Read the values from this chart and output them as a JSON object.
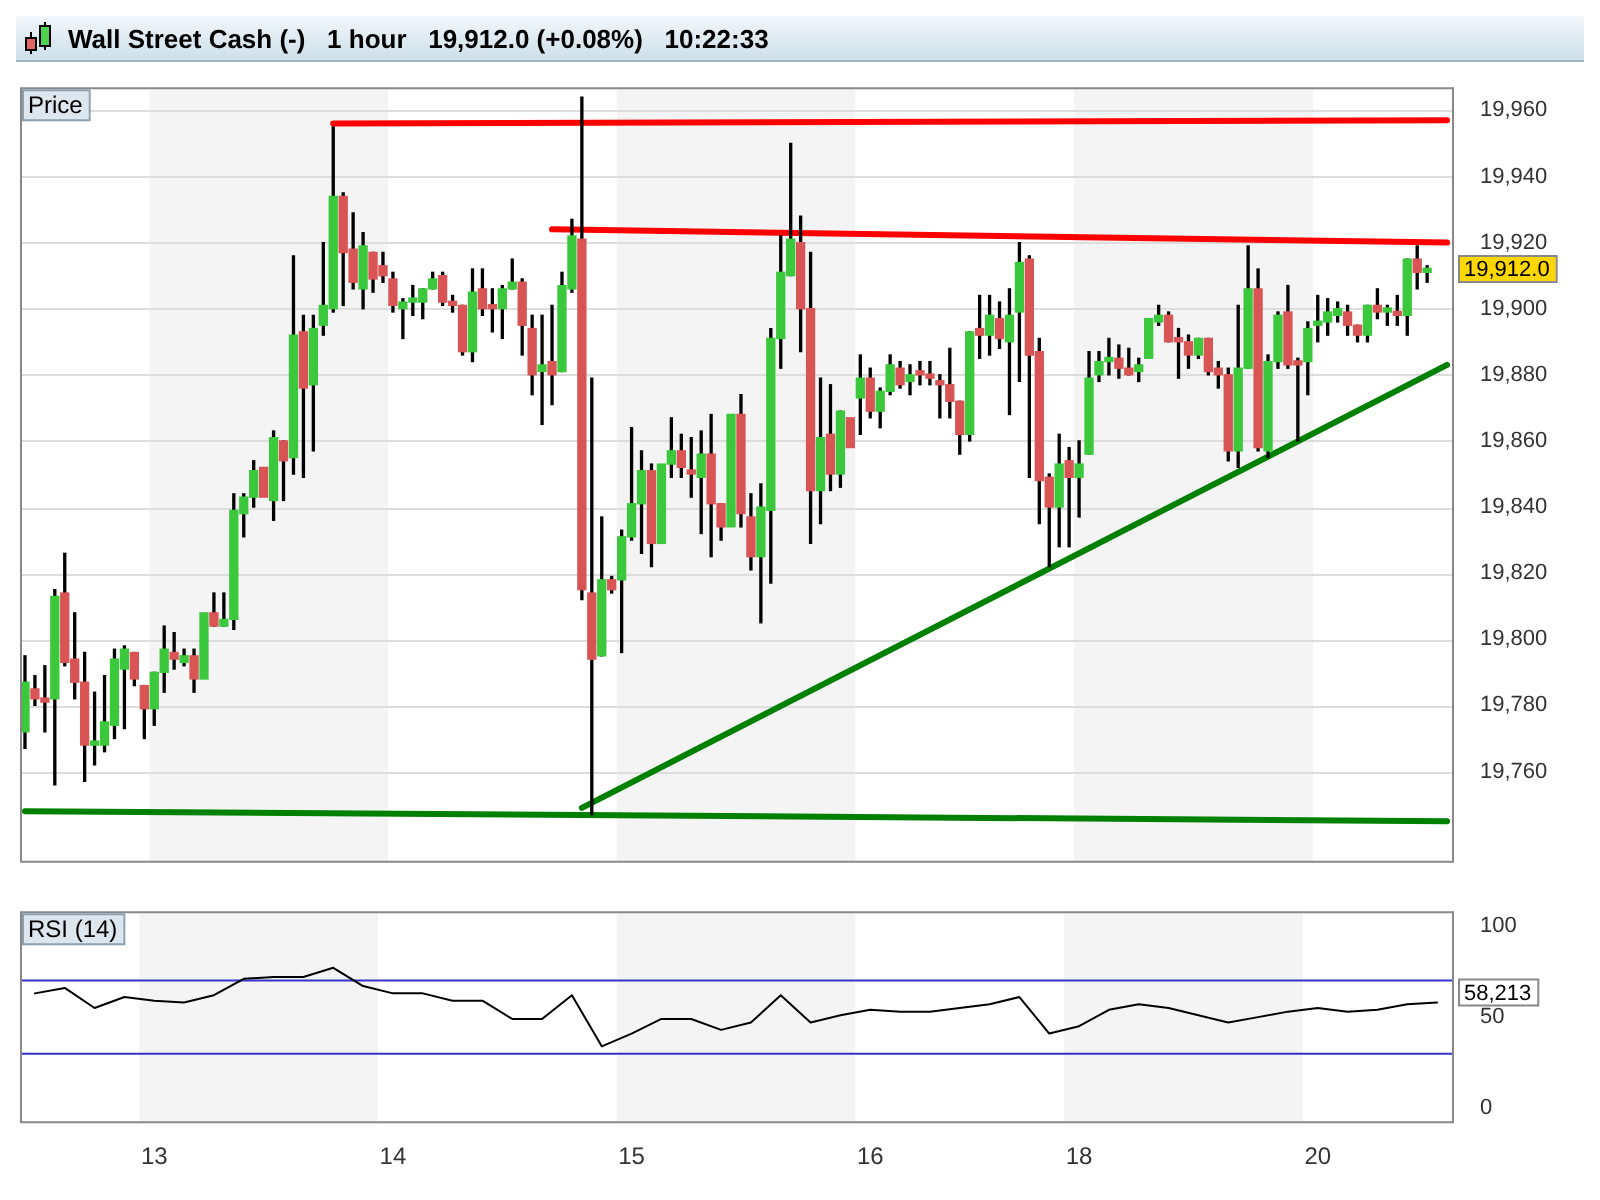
{
  "chart_data": [
    {
      "type": "candlestick",
      "title": "Wall Street Cash (-)   1 hour   19,912.0 (+0.08%)   10:22:33",
      "ylabel": "Price",
      "categories": [
        null,
        null,
        null,
        null,
        null,
        null,
        null,
        null,
        null,
        null,
        null,
        null,
        null,
        "13",
        null,
        null,
        null,
        null,
        null,
        null,
        null,
        null,
        null,
        null,
        null,
        null,
        null,
        null,
        null,
        null,
        null,
        null,
        null,
        null,
        null,
        null,
        null,
        "14",
        null,
        null,
        null,
        null,
        null,
        null,
        null,
        null,
        null,
        null,
        null,
        null,
        null,
        null,
        null,
        null,
        null,
        null,
        null,
        null,
        null,
        null,
        "15",
        null,
        null,
        null,
        null,
        null,
        null,
        null,
        null,
        null,
        null,
        null,
        null,
        null,
        null,
        null,
        null,
        null,
        null,
        null,
        null,
        null,
        null,
        null,
        "16",
        null,
        null,
        null,
        null,
        null,
        null,
        null,
        null,
        null,
        null,
        null,
        null,
        null,
        null,
        null,
        null,
        null,
        null,
        null,
        null,
        null,
        "18",
        null,
        null,
        null,
        null,
        null,
        null,
        null,
        null,
        null,
        null,
        null,
        null,
        null,
        null,
        null,
        null,
        null,
        null,
        null,
        null,
        null,
        null,
        null,
        "20",
        null,
        null,
        null,
        null,
        null,
        null,
        null,
        null,
        null,
        null,
        null,
        null,
        null
      ],
      "ohlc": [
        [
          19772,
          19795,
          19767,
          19787
        ],
        [
          19785,
          19789,
          19780,
          19782
        ],
        [
          19782,
          19792,
          19772,
          19781
        ],
        [
          19782,
          19815,
          19756,
          19813
        ],
        [
          19814,
          19826,
          19792,
          19793
        ],
        [
          19794,
          19808,
          19782,
          19787
        ],
        [
          19787,
          19796,
          19757,
          19768
        ],
        [
          19768,
          19784,
          19762,
          19769
        ],
        [
          19768,
          19789,
          19766,
          19775
        ],
        [
          19774,
          19797,
          19770,
          19794
        ],
        [
          19791,
          19798,
          19773,
          19797
        ],
        [
          19796,
          19796,
          19786,
          19788
        ],
        [
          19786,
          19786,
          19770,
          19779
        ],
        [
          19779,
          19790,
          19774,
          19790
        ],
        [
          19790,
          19804,
          19784,
          19797
        ],
        [
          19796,
          19802,
          19791,
          19794
        ],
        [
          19793,
          19797,
          19792,
          19795
        ],
        [
          19795,
          19797,
          19784,
          19788
        ],
        [
          19788,
          19808,
          19788,
          19808
        ],
        [
          19808,
          19814,
          19804,
          19804
        ],
        [
          19804,
          19814,
          19804,
          19806
        ],
        [
          19806,
          19844,
          19803,
          19839
        ],
        [
          19838,
          19844,
          19831,
          19843
        ],
        [
          19843,
          19854,
          19840,
          19851
        ],
        [
          19852,
          19852,
          19843,
          19843
        ],
        [
          19842,
          19863,
          19836,
          19861
        ],
        [
          19860,
          19860,
          19842,
          19854
        ],
        [
          19855,
          19916,
          19850,
          19892
        ],
        [
          19893,
          19898,
          19849,
          19876
        ],
        [
          19877,
          19898,
          19857,
          19894
        ],
        [
          19895,
          19920,
          19892,
          19901
        ],
        [
          19900,
          19955,
          19899,
          19934
        ],
        [
          19934,
          19935,
          19901,
          19917
        ],
        [
          19918,
          19929,
          19906,
          19908
        ],
        [
          19906,
          19923,
          19900,
          19919
        ],
        [
          19917,
          19917,
          19905,
          19909
        ],
        [
          19913,
          19917,
          19908,
          19910
        ],
        [
          19909,
          19911,
          19899,
          19901
        ],
        [
          19900,
          19903,
          19891,
          19902
        ],
        [
          19902,
          19907,
          19898,
          19903
        ],
        [
          19902,
          19906,
          19897,
          19906
        ],
        [
          19906,
          19911,
          19906,
          19909
        ],
        [
          19910,
          19911,
          19901,
          19902
        ],
        [
          19902,
          19904,
          19899,
          19901
        ],
        [
          19901,
          19901,
          19886,
          19887
        ],
        [
          19887,
          19912,
          19884,
          19905
        ],
        [
          19906,
          19912,
          19898,
          19900
        ],
        [
          19901,
          19906,
          19893,
          19900
        ],
        [
          19900,
          19907,
          19891,
          19906
        ],
        [
          19906,
          19915,
          19906,
          19908
        ],
        [
          19908,
          19909,
          19886,
          19895
        ],
        [
          19894,
          19898,
          19874,
          19880
        ],
        [
          19881,
          19898,
          19865,
          19883
        ],
        [
          19884,
          19901,
          19871,
          19880
        ],
        [
          19881,
          19911,
          19881,
          19907
        ],
        [
          19906,
          19927,
          19905,
          19922
        ],
        [
          19921,
          19964,
          19812,
          19815
        ],
        [
          19814,
          19879,
          19747,
          19794
        ],
        [
          19795,
          19837,
          19795,
          19818
        ],
        [
          19818,
          19819,
          19814,
          19815
        ],
        [
          19818,
          19833,
          19796,
          19831
        ],
        [
          19831,
          19864,
          19830,
          19841
        ],
        [
          19841,
          19857,
          19826,
          19851
        ],
        [
          19851,
          19853,
          19822,
          19829
        ],
        [
          19829,
          19853,
          19829,
          19853
        ],
        [
          19853,
          19867,
          19849,
          19857
        ],
        [
          19857,
          19862,
          19849,
          19852
        ],
        [
          19851,
          19861,
          19843,
          19850
        ],
        [
          19849,
          19863,
          19832,
          19856
        ],
        [
          19856,
          19868,
          19825,
          19841
        ],
        [
          19841,
          19841,
          19830,
          19834
        ],
        [
          19834,
          19868,
          19834,
          19868
        ],
        [
          19868,
          19874,
          19834,
          19838
        ],
        [
          19837,
          19844,
          19821,
          19825
        ],
        [
          19825,
          19847,
          19805,
          19840
        ],
        [
          19839,
          19894,
          19817,
          19891
        ],
        [
          19891,
          19922,
          19882,
          19911
        ],
        [
          19910,
          19950,
          19910,
          19921
        ],
        [
          19920,
          19928,
          19887,
          19900
        ],
        [
          19900,
          19917,
          19829,
          19845
        ],
        [
          19845,
          19879,
          19835,
          19861
        ],
        [
          19862,
          19877,
          19845,
          19850
        ],
        [
          19850,
          19869,
          19846,
          19869
        ],
        [
          19867,
          19867,
          19858,
          19858
        ],
        [
          19873,
          19886,
          19862,
          19879
        ],
        [
          19879,
          19882,
          19867,
          19869
        ],
        [
          19869,
          19876,
          19864,
          19875
        ],
        [
          19875,
          19886,
          19874,
          19883
        ],
        [
          19882,
          19884,
          19876,
          19877
        ],
        [
          19878,
          19883,
          19874,
          19880
        ],
        [
          19881,
          19884,
          19877,
          19880
        ],
        [
          19880,
          19884,
          19877,
          19879
        ],
        [
          19878,
          19880,
          19867,
          19877
        ],
        [
          19877,
          19888,
          19867,
          19872
        ],
        [
          19872,
          19872,
          19856,
          19862
        ],
        [
          19862,
          19893,
          19860,
          19893
        ],
        [
          19894,
          19904,
          19885,
          19892
        ],
        [
          19892,
          19904,
          19886,
          19898
        ],
        [
          19897,
          19902,
          19888,
          19891
        ],
        [
          19890,
          19906,
          19868,
          19898
        ],
        [
          19899,
          19920,
          19878,
          19914
        ],
        [
          19915,
          19916,
          19849,
          19886
        ],
        [
          19887,
          19891,
          19835,
          19848
        ],
        [
          19849,
          19850,
          19822,
          19840
        ],
        [
          19840,
          19862,
          19828,
          19853
        ],
        [
          19854,
          19858,
          19828,
          19849
        ],
        [
          19849,
          19860,
          19837,
          19853
        ],
        [
          19856,
          19887,
          19856,
          19879
        ],
        [
          19880,
          19887,
          19878,
          19884
        ],
        [
          19884,
          19891,
          19880,
          19885
        ],
        [
          19885,
          19889,
          19879,
          19882
        ],
        [
          19882,
          19888,
          19880,
          19880
        ],
        [
          19881,
          19885,
          19878,
          19883
        ],
        [
          19885,
          19897,
          19885,
          19897
        ],
        [
          19896,
          19901,
          19895,
          19898
        ],
        [
          19898,
          19899,
          19890,
          19890
        ],
        [
          19891,
          19894,
          19879,
          19890
        ],
        [
          19890,
          19892,
          19882,
          19886
        ],
        [
          19886,
          19891,
          19885,
          19891
        ],
        [
          19891,
          19891,
          19880,
          19881
        ],
        [
          19882,
          19884,
          19876,
          19880
        ],
        [
          19880,
          19882,
          19854,
          19857
        ],
        [
          19857,
          19901,
          19852,
          19882
        ],
        [
          19882,
          19919,
          19882,
          19906
        ],
        [
          19906,
          19912,
          19857,
          19858
        ],
        [
          19857,
          19886,
          19855,
          19884
        ],
        [
          19884,
          19899,
          19882,
          19898
        ],
        [
          19899,
          19907,
          19882,
          19883
        ],
        [
          19884,
          19885,
          19860,
          19883
        ],
        [
          19884,
          19896,
          19874,
          19894
        ],
        [
          19895,
          19904,
          19890,
          19896
        ],
        [
          19896,
          19903,
          19892,
          19899
        ],
        [
          19898,
          19902,
          19896,
          19900
        ],
        [
          19899,
          19901,
          19892,
          19895
        ],
        [
          19895,
          19895,
          19890,
          19892
        ],
        [
          19892,
          19901,
          19890,
          19901
        ],
        [
          19901,
          19906,
          19897,
          19899
        ],
        [
          19899,
          19901,
          19895,
          19900
        ],
        [
          19899,
          19904,
          19895,
          19898
        ],
        [
          19898,
          19915,
          19892,
          19915
        ],
        [
          19915,
          19919,
          19906,
          19911
        ],
        [
          19911,
          19913,
          19908,
          19912
        ],
        null,
        null
      ],
      "series": [
        {
          "type": "line",
          "color": "#ff0000",
          "values": [
            null,
            null,
            null,
            null,
            null,
            null,
            null,
            null,
            null,
            null,
            null,
            null,
            null,
            null,
            null,
            null,
            null,
            null,
            null,
            null,
            null,
            null,
            null,
            null,
            null,
            null,
            null,
            null,
            null,
            null,
            null,
            19956,
            null,
            null,
            null,
            null,
            null,
            null,
            null,
            null,
            null,
            null,
            null,
            null,
            null,
            null,
            null,
            null,
            null,
            null,
            null,
            null,
            null,
            null,
            null,
            null,
            null,
            null,
            null,
            null,
            null,
            null,
            null,
            null,
            null,
            null,
            null,
            null,
            null,
            null,
            null,
            null,
            null,
            null,
            null,
            null,
            null,
            null,
            null,
            null,
            null,
            null,
            null,
            null,
            null,
            null,
            null,
            null,
            null,
            null,
            null,
            null,
            null,
            null,
            null,
            null,
            null,
            null,
            null,
            null,
            null,
            null,
            null,
            null,
            null,
            null,
            null,
            null,
            null,
            null,
            null,
            null,
            null,
            null,
            null,
            null,
            null,
            null,
            null,
            null,
            null,
            null,
            null,
            null,
            null,
            null,
            null,
            null,
            null,
            null,
            null,
            null,
            null,
            null,
            null,
            null,
            null,
            null,
            null,
            null,
            null,
            null,
            null,
            19957
          ]
        },
        {
          "type": "line",
          "color": "#ff0000",
          "values": [
            null,
            null,
            null,
            null,
            null,
            null,
            null,
            null,
            null,
            null,
            null,
            null,
            null,
            null,
            null,
            null,
            null,
            null,
            null,
            null,
            null,
            null,
            null,
            null,
            null,
            null,
            null,
            null,
            null,
            null,
            null,
            null,
            null,
            null,
            null,
            null,
            null,
            null,
            null,
            null,
            null,
            null,
            null,
            null,
            null,
            null,
            null,
            null,
            null,
            null,
            null,
            null,
            null,
            19924,
            null,
            null,
            null,
            null,
            null,
            null,
            null,
            null,
            null,
            null,
            null,
            null,
            null,
            null,
            null,
            null,
            null,
            null,
            null,
            null,
            null,
            null,
            null,
            null,
            null,
            null,
            null,
            null,
            null,
            null,
            null,
            null,
            null,
            null,
            null,
            null,
            null,
            null,
            null,
            null,
            null,
            null,
            null,
            null,
            null,
            null,
            null,
            null,
            null,
            null,
            null,
            null,
            null,
            null,
            null,
            null,
            null,
            null,
            null,
            null,
            null,
            null,
            null,
            null,
            null,
            null,
            null,
            null,
            null,
            null,
            null,
            null,
            null,
            null,
            null,
            null,
            null,
            null,
            null,
            null,
            null,
            null,
            null,
            null,
            null,
            null,
            null,
            null,
            null,
            19920
          ]
        },
        {
          "type": "line",
          "color": "#008000",
          "values": [
            null,
            null,
            null,
            null,
            null,
            null,
            null,
            null,
            null,
            null,
            null,
            null,
            null,
            null,
            null,
            null,
            null,
            null,
            null,
            null,
            null,
            null,
            null,
            null,
            null,
            null,
            null,
            null,
            null,
            null,
            null,
            null,
            null,
            null,
            null,
            null,
            null,
            null,
            null,
            null,
            null,
            null,
            null,
            null,
            null,
            null,
            null,
            null,
            null,
            null,
            null,
            null,
            null,
            null,
            null,
            null,
            19749,
            null,
            null,
            null,
            null,
            null,
            null,
            null,
            null,
            null,
            null,
            null,
            null,
            null,
            null,
            null,
            null,
            null,
            null,
            null,
            null,
            null,
            null,
            null,
            null,
            null,
            null,
            null,
            null,
            null,
            null,
            null,
            null,
            null,
            null,
            null,
            null,
            null,
            null,
            null,
            null,
            null,
            null,
            null,
            null,
            null,
            null,
            null,
            null,
            null,
            null,
            null,
            null,
            null,
            null,
            null,
            null,
            null,
            null,
            null,
            null,
            null,
            null,
            null,
            null,
            null,
            null,
            null,
            null,
            null,
            null,
            null,
            null,
            null,
            null,
            null,
            null,
            null,
            null,
            null,
            null,
            null,
            null,
            null,
            null,
            null,
            null,
            19883
          ]
        },
        {
          "type": "line",
          "color": "#008000",
          "values": [
            19748,
            null,
            null,
            null,
            null,
            null,
            null,
            null,
            null,
            null,
            null,
            null,
            null,
            null,
            null,
            null,
            null,
            null,
            null,
            null,
            null,
            null,
            null,
            null,
            null,
            null,
            null,
            null,
            null,
            null,
            null,
            null,
            null,
            null,
            null,
            null,
            null,
            null,
            null,
            null,
            null,
            null,
            null,
            null,
            null,
            null,
            null,
            null,
            null,
            null,
            null,
            null,
            null,
            null,
            null,
            null,
            null,
            null,
            null,
            null,
            null,
            null,
            null,
            null,
            null,
            null,
            null,
            null,
            null,
            null,
            null,
            null,
            null,
            null,
            null,
            null,
            null,
            null,
            null,
            null,
            null,
            null,
            null,
            null,
            null,
            null,
            null,
            null,
            null,
            null,
            null,
            null,
            null,
            null,
            null,
            null,
            null,
            null,
            null,
            null,
            null,
            null,
            null,
            null,
            null,
            null,
            null,
            null,
            null,
            null,
            null,
            null,
            null,
            null,
            null,
            null,
            null,
            null,
            null,
            null,
            null,
            null,
            null,
            null,
            null,
            null,
            null,
            null,
            null,
            null,
            null,
            null,
            null,
            null,
            null,
            null,
            null,
            null,
            null,
            null,
            null,
            null,
            null,
            19745
          ]
        }
      ],
      "ylim": [
        19733,
        19967
      ],
      "yticks": [
        {
          "value": 19760,
          "label": "19,760"
        },
        {
          "value": 19780,
          "label": "19,780"
        },
        {
          "value": 19800,
          "label": "19,800"
        },
        {
          "value": 19820,
          "label": "19,820"
        },
        {
          "value": 19840,
          "label": "19,840"
        },
        {
          "value": 19860,
          "label": "19,860"
        },
        {
          "value": 19880,
          "label": "19,880"
        },
        {
          "value": 19900,
          "label": "19,900"
        },
        {
          "value": 19920,
          "label": "19,920"
        },
        {
          "value": 19940,
          "label": "19,940"
        },
        {
          "value": 19960,
          "label": "19,960"
        }
      ],
      "grid": "y",
      "tick_labels": "y",
      "bands": [
        {
          "axis": "x",
          "from": "13",
          "to": "14",
          "color": "#f4f4f4"
        },
        {
          "axis": "x",
          "from": "15",
          "to": "16",
          "color": "#f4f4f4"
        },
        {
          "axis": "x",
          "from": "18",
          "to": "20",
          "color": "#f4f4f4"
        }
      ],
      "annotations": [
        "19,912.0"
      ]
    },
    {
      "type": "line",
      "title": "RSI (14)",
      "categories": [
        null,
        null,
        null,
        null,
        "13",
        null,
        null,
        null,
        null,
        null,
        null,
        null,
        "14",
        null,
        null,
        null,
        null,
        null,
        null,
        null,
        "15",
        null,
        null,
        null,
        null,
        null,
        null,
        null,
        "16",
        null,
        null,
        null,
        null,
        null,
        null,
        "18",
        null,
        null,
        null,
        null,
        null,
        null,
        null,
        "20",
        null,
        null,
        null,
        null
      ],
      "series": [
        {
          "color": "#000000",
          "values": [
            63,
            66,
            55,
            61,
            59,
            58,
            62,
            71,
            72,
            72,
            77,
            67,
            63,
            63,
            59,
            59,
            49,
            49,
            62,
            34,
            41,
            49,
            49,
            43,
            47,
            62,
            47,
            51,
            54,
            53,
            53,
            55,
            57,
            61,
            41,
            45,
            54,
            57,
            55,
            51,
            47,
            50,
            53,
            55,
            53,
            54,
            57,
            58
          ]
        }
      ],
      "ylim": [
        -7,
        108
      ],
      "yticks": [
        0,
        50,
        100
      ],
      "ref_lines": [
        {
          "axis": "y",
          "value": 70,
          "color": "#3333cc"
        },
        {
          "axis": "y",
          "value": 30,
          "color": "#3333cc"
        }
      ],
      "bands": [
        {
          "axis": "x",
          "from": "13",
          "to": "14",
          "color": "#f4f4f4"
        },
        {
          "axis": "x",
          "from": "15",
          "to": "16",
          "color": "#f4f4f4"
        },
        {
          "axis": "x",
          "from": "18",
          "to": "20",
          "color": "#f4f4f4"
        }
      ],
      "annotations": [
        "58,213"
      ]
    }
  ]
}
